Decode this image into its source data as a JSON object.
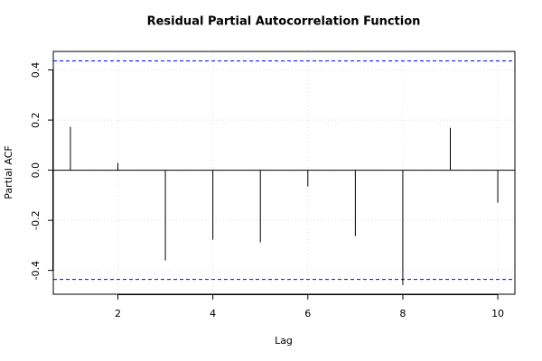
{
  "chart_data": {
    "type": "pacf",
    "title": "Residual Partial Autocorrelation Function",
    "x_label": "Lag",
    "y_label": "Partial ACF",
    "x": [
      1,
      2,
      3,
      4,
      5,
      6,
      7,
      8,
      9,
      10
    ],
    "values": [
      0.173,
      0.029,
      -0.36,
      -0.277,
      -0.288,
      -0.065,
      -0.263,
      -0.458,
      0.169,
      -0.13
    ],
    "color": "#000000",
    "conf_limits": [
      0.436,
      -0.436
    ],
    "conf_color": "#0000ff",
    "xlim": [
      0.64,
      10.36
    ],
    "xticks": [
      2,
      4,
      6,
      8,
      10
    ],
    "ylim": [
      -0.495,
      0.474
    ],
    "yticks": [
      -0.4,
      -0.2,
      {
        "value": 0,
        "label": "0.0"
      },
      0.2,
      0.4
    ],
    "grid": true
  }
}
